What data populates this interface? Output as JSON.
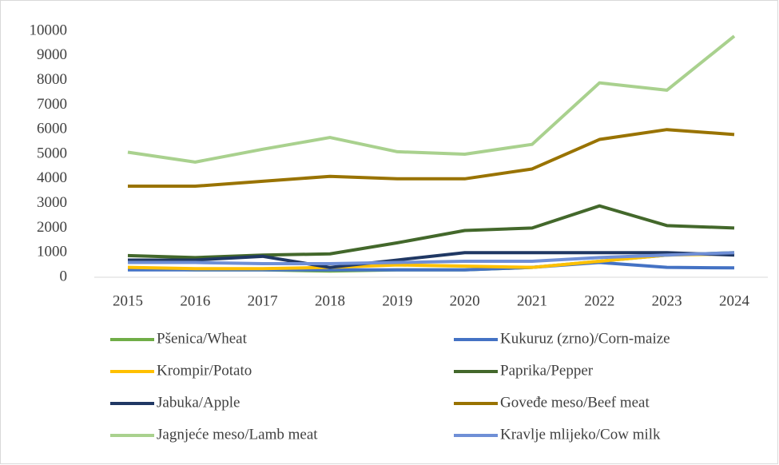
{
  "chart_data": {
    "type": "line",
    "x": [
      "2015",
      "2016",
      "2017",
      "2018",
      "2019",
      "2020",
      "2021",
      "2022",
      "2023",
      "2024"
    ],
    "ylim": [
      0,
      10000
    ],
    "yticks": [
      0,
      1000,
      2000,
      3000,
      4000,
      5000,
      6000,
      7000,
      8000,
      9000,
      10000
    ],
    "series": [
      {
        "name": "Pšenica/Wheat",
        "color": "#70ad47",
        "values": [
          350,
          300,
          300,
          250,
          300,
          300,
          400,
          650,
          900,
          1000
        ]
      },
      {
        "name": "Kukuruz (zrno)/Corn-maize",
        "color": "#4472c4",
        "values": [
          300,
          300,
          300,
          300,
          300,
          300,
          400,
          600,
          400,
          380
        ]
      },
      {
        "name": "Krompir/Potato",
        "color": "#ffc000",
        "values": [
          400,
          350,
          350,
          400,
          500,
          450,
          400,
          650,
          900,
          950
        ]
      },
      {
        "name": "Paprika/Pepper",
        "color": "#43682b",
        "values": [
          880,
          800,
          900,
          950,
          1400,
          1900,
          2000,
          2900,
          2100,
          2000
        ]
      },
      {
        "name": "Jabuka/Apple",
        "color": "#203864",
        "values": [
          700,
          700,
          850,
          400,
          700,
          1000,
          1000,
          1000,
          1000,
          900
        ]
      },
      {
        "name": "Goveđe meso/Beef meat",
        "color": "#997300",
        "values": [
          3700,
          3700,
          3900,
          4100,
          4000,
          4000,
          4400,
          5600,
          6000,
          5800
        ]
      },
      {
        "name": "Jagnjeće meso/Lamb meat",
        "color": "#a9d18e",
        "values": [
          5080,
          4680,
          5200,
          5680,
          5100,
          5000,
          5400,
          7900,
          7600,
          9800
        ]
      },
      {
        "name": "Kravlje mlijeko/Cow milk",
        "color": "#6f8fd6",
        "values": [
          600,
          600,
          550,
          550,
          600,
          650,
          650,
          800,
          900,
          1000
        ]
      }
    ]
  }
}
